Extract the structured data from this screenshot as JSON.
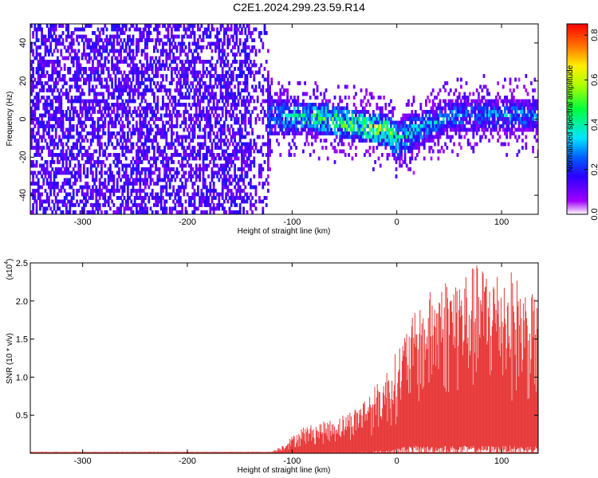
{
  "title": "C2E1.2024.299.23.59.R14",
  "chart_data": [
    {
      "type": "heatmap",
      "xlabel": "Height of straight line (km)",
      "ylabel": "Frequency (Hz)",
      "xlim": [
        -350,
        135
      ],
      "ylim": [
        -50,
        50
      ],
      "x_ticks": [
        -300,
        -200,
        -100,
        0,
        100
      ],
      "y_ticks": [
        -40,
        -20,
        0,
        20,
        40
      ],
      "colorbar": {
        "label": "Normalized spectral amplitude",
        "range": [
          0.0,
          0.85
        ],
        "ticks": [
          "0.0",
          "0.2",
          "0.4",
          "0.6",
          "0.8"
        ]
      },
      "description_points": [
        {
          "x": -350,
          "band_center": 0,
          "band_halfwidth": 50,
          "level": 0.12
        },
        {
          "x": -130,
          "band_center": 0,
          "band_halfwidth": 50,
          "level": 0.12
        },
        {
          "x": -120,
          "band_center": 2,
          "band_halfwidth": 10,
          "level": 0.3
        },
        {
          "x": -80,
          "band_center": 2,
          "band_halfwidth": 8,
          "level": 0.45
        },
        {
          "x": -10,
          "band_center": -5,
          "band_halfwidth": 8,
          "level": 0.6
        },
        {
          "x": 0,
          "band_center": -10,
          "band_halfwidth": 10,
          "level": 0.4
        },
        {
          "x": 50,
          "band_center": 3,
          "band_halfwidth": 8,
          "level": 0.3
        },
        {
          "x": 135,
          "band_center": 3,
          "band_halfwidth": 8,
          "level": 0.3
        }
      ]
    },
    {
      "type": "area",
      "xlabel": "Height of straight line (km)",
      "ylabel": "SNR (10 * v/v)",
      "y_multiplier_label": "(x10",
      "y_multiplier_exp": "4",
      "xlim": [
        -350,
        135
      ],
      "ylim": [
        0,
        2.5
      ],
      "x_ticks": [
        -300,
        -200,
        -100,
        0,
        100
      ],
      "y_ticks": [
        "0.5",
        "1.0",
        "1.5",
        "2.0",
        "2.5"
      ],
      "series_color": "#e83a3a",
      "envelope": [
        {
          "x": -350,
          "lo": 0.0,
          "hi": 0.02
        },
        {
          "x": -120,
          "lo": 0.0,
          "hi": 0.02
        },
        {
          "x": -110,
          "lo": 0.0,
          "hi": 0.1
        },
        {
          "x": -90,
          "lo": 0.0,
          "hi": 0.35
        },
        {
          "x": -60,
          "lo": 0.02,
          "hi": 0.45
        },
        {
          "x": -40,
          "lo": 0.02,
          "hi": 0.6
        },
        {
          "x": -20,
          "lo": 0.03,
          "hi": 0.9
        },
        {
          "x": -5,
          "lo": 0.05,
          "hi": 1.2
        },
        {
          "x": 10,
          "lo": 0.1,
          "hi": 1.7
        },
        {
          "x": 40,
          "lo": 0.1,
          "hi": 2.3
        },
        {
          "x": 80,
          "lo": 0.1,
          "hi": 2.5
        },
        {
          "x": 110,
          "lo": 0.1,
          "hi": 2.4
        },
        {
          "x": 135,
          "lo": 0.1,
          "hi": 2.0
        }
      ]
    }
  ],
  "colors": {
    "frame": "#000000",
    "snr": "#e83a3a",
    "heat_low": "#6a00ff",
    "heat_high": "#ff0000"
  }
}
